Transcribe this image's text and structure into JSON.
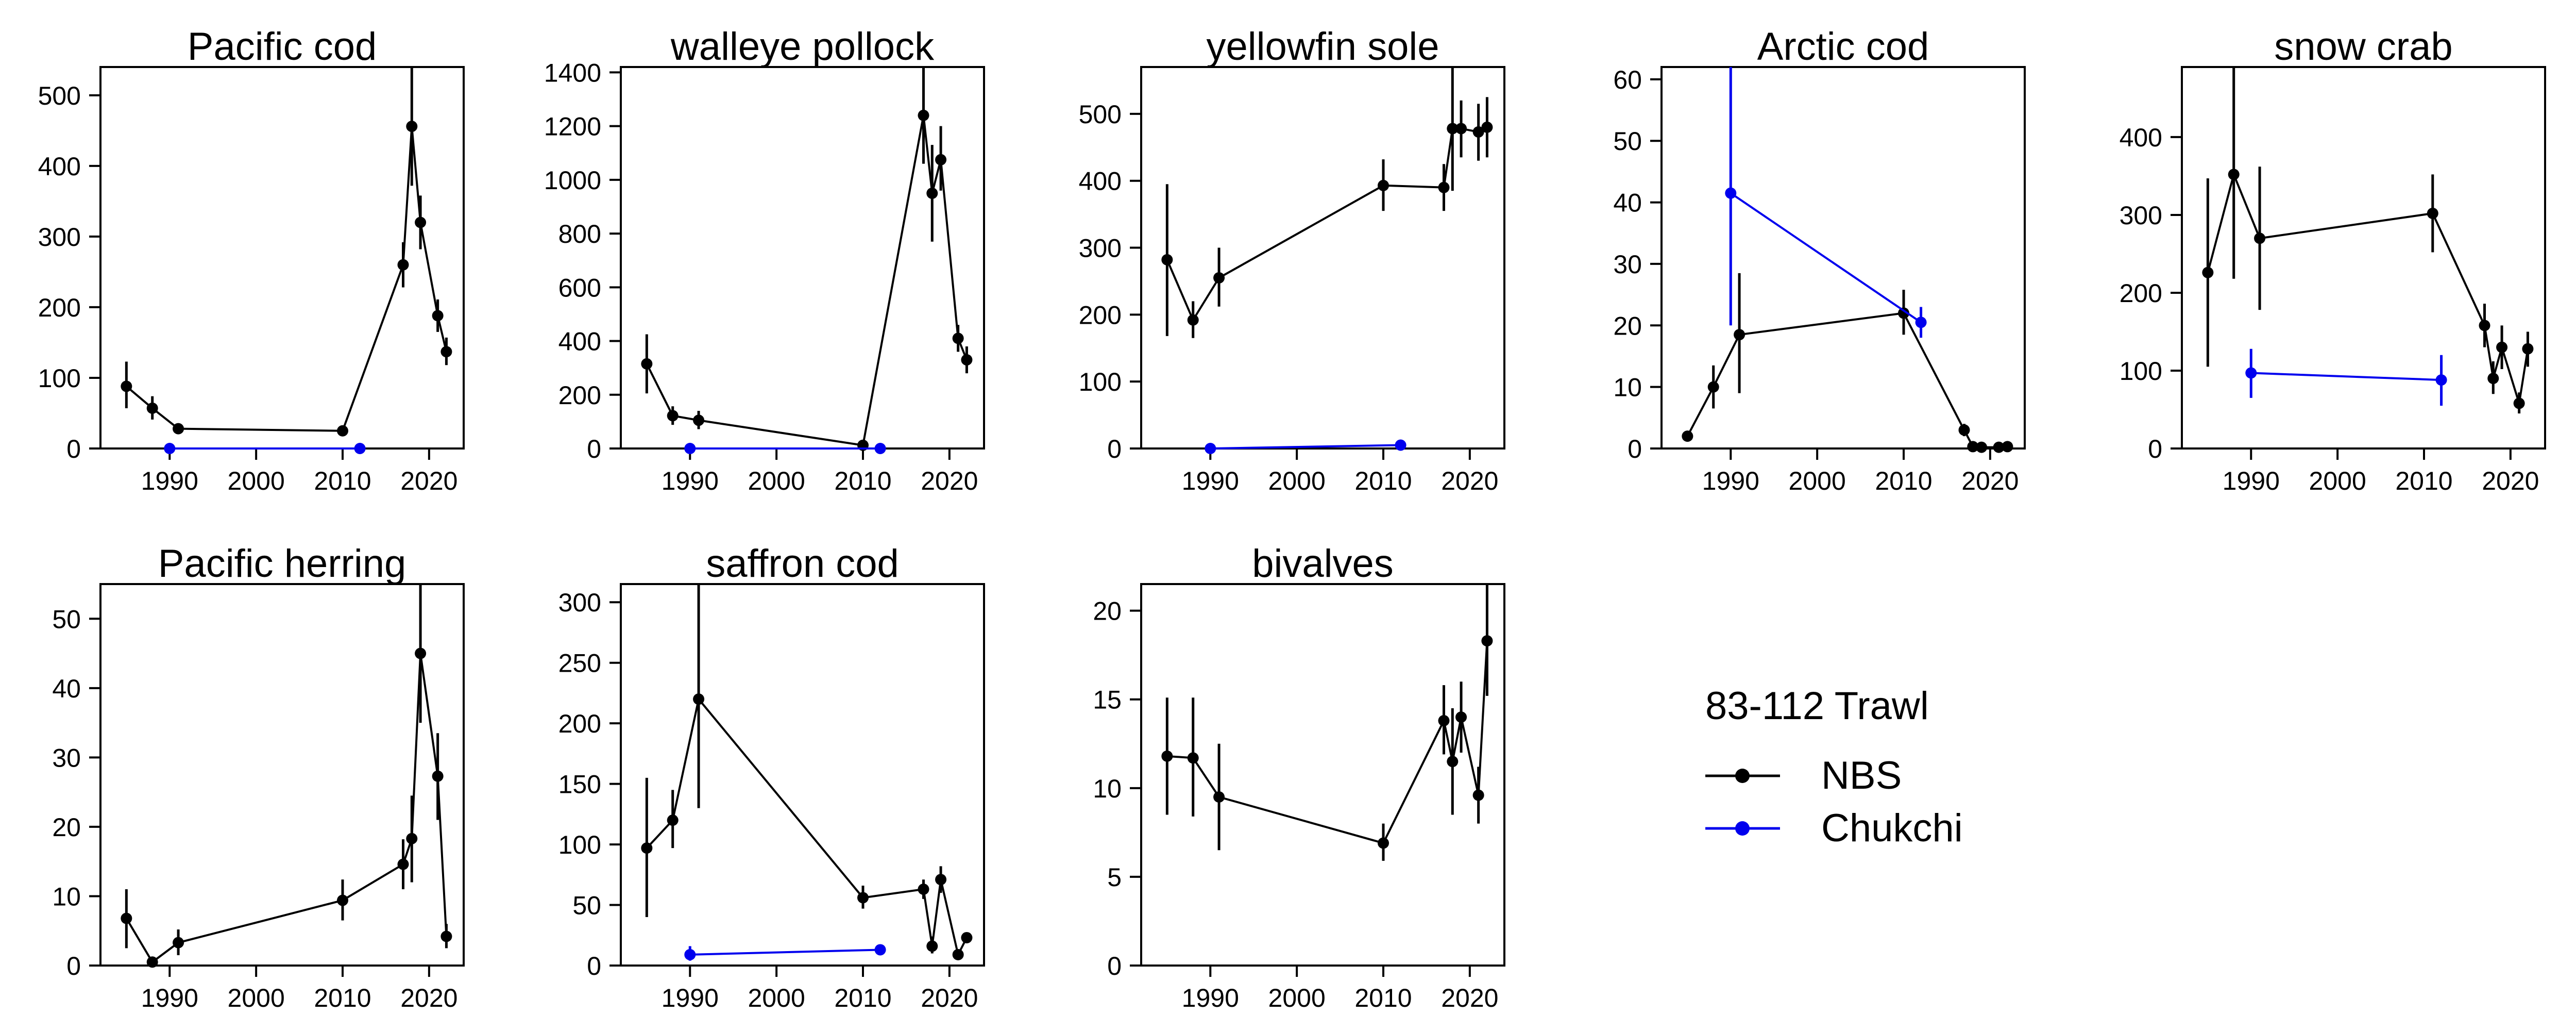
{
  "figure": {
    "legend": {
      "title": "83-112 Trawl",
      "items": [
        {
          "label": "NBS",
          "color": "#000000"
        },
        {
          "label": "Chukchi",
          "color": "#0000ee"
        }
      ]
    }
  },
  "chart_data": [
    {
      "type": "line",
      "title": "Pacific cod",
      "xlim": [
        1982,
        2024
      ],
      "ylim": [
        0,
        540
      ],
      "xticks": [
        1990,
        2000,
        2010,
        2020
      ],
      "yticks": [
        0,
        100,
        200,
        300,
        400,
        500
      ],
      "series": [
        {
          "name": "NBS",
          "color": "#000000",
          "points": [
            {
              "x": 1985,
              "y": 88,
              "lo": 57,
              "hi": 123
            },
            {
              "x": 1988,
              "y": 57,
              "lo": 41,
              "hi": 74
            },
            {
              "x": 1991,
              "y": 28,
              "lo": 23,
              "hi": 33
            },
            {
              "x": 2010,
              "y": 25,
              "lo": 21,
              "hi": 29
            },
            {
              "x": 2017,
              "y": 260,
              "lo": 228,
              "hi": 292
            },
            {
              "x": 2018,
              "y": 456,
              "lo": 372,
              "hi": 540
            },
            {
              "x": 2019,
              "y": 320,
              "lo": 282,
              "hi": 358
            },
            {
              "x": 2021,
              "y": 188,
              "lo": 165,
              "hi": 211
            },
            {
              "x": 2022,
              "y": 137,
              "lo": 118,
              "hi": 157
            }
          ]
        },
        {
          "name": "Chukchi",
          "color": "#0000ee",
          "points": [
            {
              "x": 1990,
              "y": 0,
              "lo": 0,
              "hi": 2
            },
            {
              "x": 2012,
              "y": 0,
              "lo": 0,
              "hi": 2
            }
          ]
        }
      ]
    },
    {
      "type": "line",
      "title": "walleye pollock",
      "xlim": [
        1982,
        2024
      ],
      "ylim": [
        0,
        1420
      ],
      "xticks": [
        1990,
        2000,
        2010,
        2020
      ],
      "yticks": [
        0,
        200,
        400,
        600,
        800,
        1000,
        1200,
        1400
      ],
      "series": [
        {
          "name": "NBS",
          "color": "#000000",
          "points": [
            {
              "x": 1985,
              "y": 315,
              "lo": 205,
              "hi": 425
            },
            {
              "x": 1988,
              "y": 122,
              "lo": 88,
              "hi": 157
            },
            {
              "x": 1991,
              "y": 105,
              "lo": 72,
              "hi": 140
            },
            {
              "x": 2010,
              "y": 12,
              "lo": 5,
              "hi": 20
            },
            {
              "x": 2017,
              "y": 1240,
              "lo": 1060,
              "hi": 1420
            },
            {
              "x": 2018,
              "y": 950,
              "lo": 770,
              "hi": 1130
            },
            {
              "x": 2019,
              "y": 1075,
              "lo": 960,
              "hi": 1200
            },
            {
              "x": 2021,
              "y": 410,
              "lo": 360,
              "hi": 460
            },
            {
              "x": 2022,
              "y": 330,
              "lo": 280,
              "hi": 380
            }
          ]
        },
        {
          "name": "Chukchi",
          "color": "#0000ee",
          "points": [
            {
              "x": 1990,
              "y": 0,
              "lo": 0,
              "hi": 4
            },
            {
              "x": 2012,
              "y": 0,
              "lo": 0,
              "hi": 4
            }
          ]
        }
      ]
    },
    {
      "type": "line",
      "title": "yellowfin sole",
      "xlim": [
        1982,
        2024
      ],
      "ylim": [
        0,
        570
      ],
      "xticks": [
        1990,
        2000,
        2010,
        2020
      ],
      "yticks": [
        0,
        100,
        200,
        300,
        400,
        500
      ],
      "series": [
        {
          "name": "NBS",
          "color": "#000000",
          "points": [
            {
              "x": 1985,
              "y": 282,
              "lo": 168,
              "hi": 395
            },
            {
              "x": 1988,
              "y": 192,
              "lo": 165,
              "hi": 220
            },
            {
              "x": 1991,
              "y": 255,
              "lo": 212,
              "hi": 300
            },
            {
              "x": 2010,
              "y": 393,
              "lo": 355,
              "hi": 432
            },
            {
              "x": 2017,
              "y": 390,
              "lo": 355,
              "hi": 425
            },
            {
              "x": 2018,
              "y": 478,
              "lo": 385,
              "hi": 570
            },
            {
              "x": 2019,
              "y": 478,
              "lo": 435,
              "hi": 520
            },
            {
              "x": 2021,
              "y": 473,
              "lo": 430,
              "hi": 515
            },
            {
              "x": 2022,
              "y": 480,
              "lo": 435,
              "hi": 525
            }
          ]
        },
        {
          "name": "Chukchi",
          "color": "#0000ee",
          "points": [
            {
              "x": 1990,
              "y": 0,
              "lo": 0,
              "hi": 2
            },
            {
              "x": 2012,
              "y": 5,
              "lo": 2,
              "hi": 8
            }
          ]
        }
      ]
    },
    {
      "type": "line",
      "title": "Arctic cod",
      "xlim": [
        1982,
        2024
      ],
      "ylim": [
        0,
        62
      ],
      "xticks": [
        1990,
        2000,
        2010,
        2020
      ],
      "yticks": [
        0,
        10,
        20,
        30,
        40,
        50,
        60
      ],
      "series": [
        {
          "name": "NBS",
          "color": "#000000",
          "points": [
            {
              "x": 1985,
              "y": 2,
              "lo": 1.5,
              "hi": 2.5
            },
            {
              "x": 1988,
              "y": 10,
              "lo": 6.5,
              "hi": 13.5
            },
            {
              "x": 1991,
              "y": 18.5,
              "lo": 9,
              "hi": 28.5
            },
            {
              "x": 2010,
              "y": 22,
              "lo": 18.5,
              "hi": 25.8
            },
            {
              "x": 2017,
              "y": 3,
              "lo": 2,
              "hi": 4
            },
            {
              "x": 2018,
              "y": 0.3,
              "lo": 0,
              "hi": 0.8
            },
            {
              "x": 2019,
              "y": 0.2,
              "lo": 0,
              "hi": 0.6
            },
            {
              "x": 2021,
              "y": 0.2,
              "lo": 0,
              "hi": 0.6
            },
            {
              "x": 2022,
              "y": 0.3,
              "lo": 0,
              "hi": 0.8
            }
          ]
        },
        {
          "name": "Chukchi",
          "color": "#0000ee",
          "points": [
            {
              "x": 1990,
              "y": 41.5,
              "lo": 20,
              "hi": 62
            },
            {
              "x": 2012,
              "y": 20.5,
              "lo": 18,
              "hi": 23
            }
          ]
        }
      ]
    },
    {
      "type": "line",
      "title": "snow crab",
      "xlim": [
        1982,
        2024
      ],
      "ylim": [
        0,
        490
      ],
      "xticks": [
        1990,
        2000,
        2010,
        2020
      ],
      "yticks": [
        0,
        100,
        200,
        300,
        400
      ],
      "series": [
        {
          "name": "NBS",
          "color": "#000000",
          "points": [
            {
              "x": 1985,
              "y": 226,
              "lo": 105,
              "hi": 347
            },
            {
              "x": 1988,
              "y": 352,
              "lo": 218,
              "hi": 490
            },
            {
              "x": 1991,
              "y": 270,
              "lo": 178,
              "hi": 362
            },
            {
              "x": 2011,
              "y": 302,
              "lo": 252,
              "hi": 352
            },
            {
              "x": 2017,
              "y": 158,
              "lo": 130,
              "hi": 186
            },
            {
              "x": 2018,
              "y": 90,
              "lo": 70,
              "hi": 112
            },
            {
              "x": 2019,
              "y": 130,
              "lo": 102,
              "hi": 158
            },
            {
              "x": 2021,
              "y": 58,
              "lo": 45,
              "hi": 72
            },
            {
              "x": 2022,
              "y": 128,
              "lo": 105,
              "hi": 150
            }
          ]
        },
        {
          "name": "Chukchi",
          "color": "#0000ee",
          "points": [
            {
              "x": 1990,
              "y": 97,
              "lo": 65,
              "hi": 128
            },
            {
              "x": 2012,
              "y": 88,
              "lo": 55,
              "hi": 120
            }
          ]
        }
      ]
    },
    {
      "type": "line",
      "title": "Pacific herring",
      "xlim": [
        1982,
        2024
      ],
      "ylim": [
        0,
        55
      ],
      "xticks": [
        1990,
        2000,
        2010,
        2020
      ],
      "yticks": [
        0,
        10,
        20,
        30,
        40,
        50
      ],
      "series": [
        {
          "name": "NBS",
          "color": "#000000",
          "points": [
            {
              "x": 1985,
              "y": 6.8,
              "lo": 2.5,
              "hi": 11
            },
            {
              "x": 1988,
              "y": 0.5,
              "lo": 0,
              "hi": 1.2
            },
            {
              "x": 1991,
              "y": 3.3,
              "lo": 1.5,
              "hi": 5.2
            },
            {
              "x": 2010,
              "y": 9.4,
              "lo": 6.5,
              "hi": 12.4
            },
            {
              "x": 2017,
              "y": 14.6,
              "lo": 11,
              "hi": 18.2
            },
            {
              "x": 2018,
              "y": 18.3,
              "lo": 12,
              "hi": 24.5
            },
            {
              "x": 2019,
              "y": 45,
              "lo": 35,
              "hi": 55
            },
            {
              "x": 2021,
              "y": 27.3,
              "lo": 21,
              "hi": 33.5
            },
            {
              "x": 2022,
              "y": 4.2,
              "lo": 2.5,
              "hi": 6
            }
          ]
        }
      ]
    },
    {
      "type": "line",
      "title": "saffron cod",
      "xlim": [
        1982,
        2024
      ],
      "ylim": [
        0,
        315
      ],
      "xticks": [
        1990,
        2000,
        2010,
        2020
      ],
      "yticks": [
        0,
        50,
        100,
        150,
        200,
        250,
        300
      ],
      "series": [
        {
          "name": "NBS",
          "color": "#000000",
          "points": [
            {
              "x": 1985,
              "y": 97,
              "lo": 40,
              "hi": 155
            },
            {
              "x": 1988,
              "y": 120,
              "lo": 97,
              "hi": 145
            },
            {
              "x": 1991,
              "y": 220,
              "lo": 130,
              "hi": 315
            },
            {
              "x": 2010,
              "y": 56,
              "lo": 47,
              "hi": 66
            },
            {
              "x": 2017,
              "y": 63,
              "lo": 55,
              "hi": 71
            },
            {
              "x": 2018,
              "y": 16,
              "lo": 10,
              "hi": 24
            },
            {
              "x": 2019,
              "y": 71,
              "lo": 60,
              "hi": 82
            },
            {
              "x": 2021,
              "y": 9,
              "lo": 6,
              "hi": 12
            },
            {
              "x": 2022,
              "y": 23,
              "lo": 19,
              "hi": 27
            }
          ]
        },
        {
          "name": "Chukchi",
          "color": "#0000ee",
          "points": [
            {
              "x": 1990,
              "y": 9,
              "lo": 4,
              "hi": 16
            },
            {
              "x": 2012,
              "y": 13,
              "lo": 11,
              "hi": 15
            }
          ]
        }
      ]
    },
    {
      "type": "line",
      "title": "bivalves",
      "xlim": [
        1982,
        2024
      ],
      "ylim": [
        0,
        21.5
      ],
      "xticks": [
        1990,
        2000,
        2010,
        2020
      ],
      "yticks": [
        0,
        5,
        10,
        15,
        20
      ],
      "series": [
        {
          "name": "NBS",
          "color": "#000000",
          "points": [
            {
              "x": 1985,
              "y": 11.8,
              "lo": 8.5,
              "hi": 15.1
            },
            {
              "x": 1988,
              "y": 11.7,
              "lo": 8.4,
              "hi": 15.1
            },
            {
              "x": 1991,
              "y": 9.5,
              "lo": 6.5,
              "hi": 12.5
            },
            {
              "x": 2010,
              "y": 6.9,
              "lo": 5.9,
              "hi": 8.0
            },
            {
              "x": 2017,
              "y": 13.8,
              "lo": 11.9,
              "hi": 15.8
            },
            {
              "x": 2018,
              "y": 11.5,
              "lo": 8.5,
              "hi": 14.5
            },
            {
              "x": 2019,
              "y": 14.0,
              "lo": 12.0,
              "hi": 16.0
            },
            {
              "x": 2021,
              "y": 9.6,
              "lo": 8.0,
              "hi": 11.2
            },
            {
              "x": 2022,
              "y": 18.3,
              "lo": 15.2,
              "hi": 21.5
            }
          ]
        }
      ]
    }
  ]
}
